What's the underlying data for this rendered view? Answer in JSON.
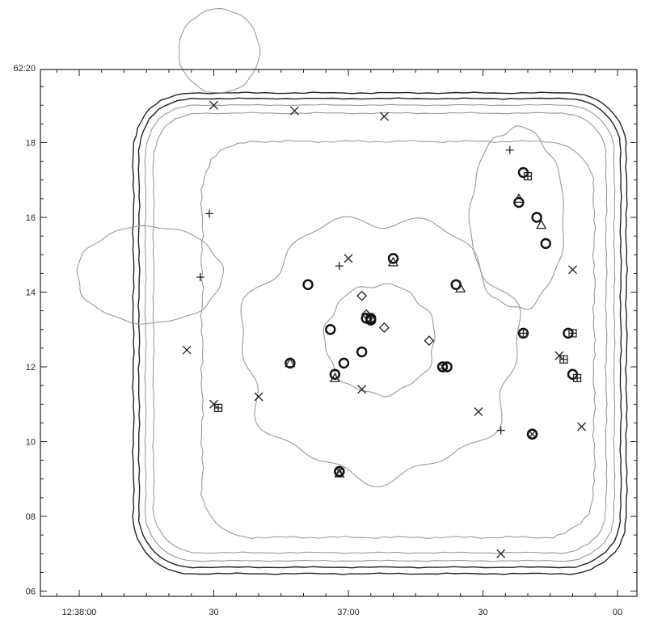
{
  "chart_data": {
    "type": "scatter",
    "title": "",
    "xlabel": "",
    "ylabel": "",
    "x_ticks": [
      {
        "label": "12:38:00",
        "ra_sec": 0
      },
      {
        "label": "30",
        "ra_sec": 30
      },
      {
        "label": "37:00",
        "ra_sec": 60
      },
      {
        "label": "30",
        "ra_sec": 90
      },
      {
        "label": "00",
        "ra_sec": 120
      }
    ],
    "y_ticks": [
      {
        "label": "62:20",
        "dec_min": 20
      },
      {
        "label": "18",
        "dec_min": 18
      },
      {
        "label": "16",
        "dec_min": 16
      },
      {
        "label": "14",
        "dec_min": 14
      },
      {
        "label": "12",
        "dec_min": 12
      },
      {
        "label": "10",
        "dec_min": 10
      },
      {
        "label": "08",
        "dec_min": 8
      },
      {
        "label": "06",
        "dec_min": 6
      }
    ],
    "xlim": [
      -4,
      122
    ],
    "ylim": [
      5.5,
      20.2
    ],
    "series": [
      {
        "marker": "circle",
        "points": [
          [
            51,
            14.2
          ],
          [
            56,
            13.0
          ],
          [
            47,
            12.1
          ],
          [
            57,
            11.8
          ],
          [
            63,
            12.4
          ],
          [
            59,
            12.1
          ],
          [
            65,
            13.3
          ],
          [
            64,
            13.3
          ],
          [
            70,
            14.9
          ],
          [
            84,
            14.2
          ],
          [
            82,
            12.0
          ],
          [
            58,
            9.2
          ],
          [
            99,
            17.2
          ],
          [
            98,
            16.4
          ],
          [
            102,
            16.0
          ],
          [
            104,
            15.3
          ],
          [
            99,
            12.9
          ],
          [
            109,
            12.9
          ],
          [
            110,
            11.8
          ],
          [
            101,
            10.2
          ]
        ]
      },
      {
        "marker": "cross",
        "points": [
          [
            30,
            19.0
          ],
          [
            48,
            18.85
          ],
          [
            68,
            18.7
          ],
          [
            24,
            12.45
          ],
          [
            30,
            11.0
          ],
          [
            40,
            11.2
          ],
          [
            60,
            14.9
          ],
          [
            63,
            11.4
          ],
          [
            89,
            10.8
          ],
          [
            94,
            7.0
          ],
          [
            107,
            12.3
          ],
          [
            112,
            10.4
          ],
          [
            110,
            14.6
          ]
        ]
      },
      {
        "marker": "plus",
        "points": [
          [
            29,
            16.1
          ],
          [
            27,
            14.4
          ],
          [
            58,
            14.7
          ],
          [
            96,
            17.8
          ],
          [
            94,
            10.3
          ]
        ]
      },
      {
        "marker": "triangle",
        "points": [
          [
            98,
            16.5
          ],
          [
            103,
            15.8
          ],
          [
            85,
            14.1
          ],
          [
            70,
            14.8
          ],
          [
            47,
            12.1
          ],
          [
            57,
            11.7
          ],
          [
            58,
            9.15
          ]
        ]
      },
      {
        "marker": "diamond",
        "points": [
          [
            63,
            13.9
          ],
          [
            64,
            13.4
          ],
          [
            68,
            13.05
          ],
          [
            78,
            12.7
          ]
        ]
      },
      {
        "marker": "boxplus",
        "points": [
          [
            100,
            17.1
          ],
          [
            99,
            12.9
          ],
          [
            108,
            12.2
          ],
          [
            110,
            12.9
          ],
          [
            111,
            11.7
          ],
          [
            31,
            10.9
          ]
        ]
      },
      {
        "marker": "circlecross",
        "points": [
          [
            65,
            13.25
          ],
          [
            81,
            12.0
          ],
          [
            101,
            10.2
          ],
          [
            58,
            9.2
          ]
        ]
      }
    ]
  },
  "colors": {
    "dark_contour": "#222222",
    "light_contour": "#999999",
    "markers": "#111111"
  }
}
